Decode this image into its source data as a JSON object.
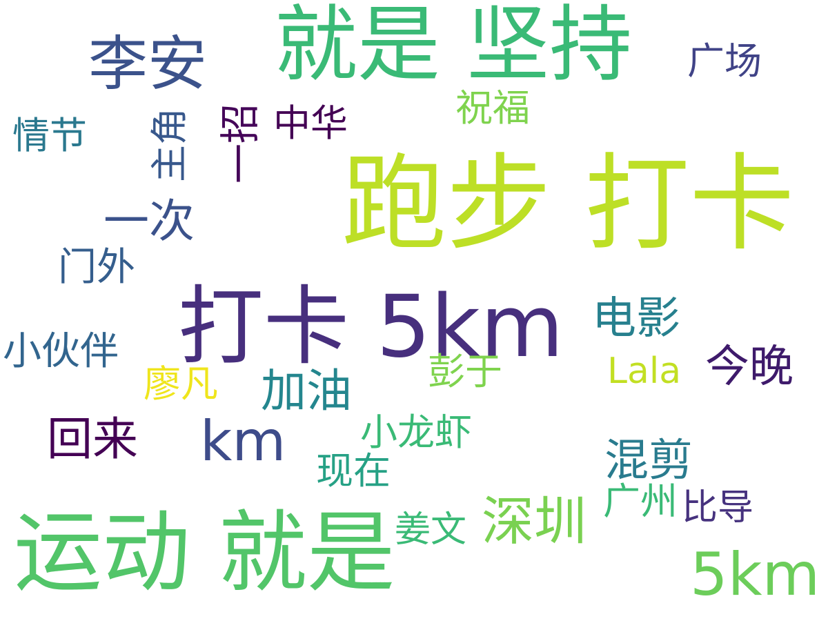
{
  "words": [
    {
      "text": "跑步 打卡",
      "color": "#bddf26"
    },
    {
      "text": "打卡 5km",
      "color": "#472f7d"
    },
    {
      "text": "就是 坚持",
      "color": "#3aba76"
    },
    {
      "text": "运动 就是",
      "color": "#52c569"
    },
    {
      "text": "李安",
      "color": "#3b528b"
    },
    {
      "text": "5km",
      "color": "#6ccd5a"
    },
    {
      "text": "深圳",
      "color": "#7ad151"
    },
    {
      "text": "km",
      "color": "#3e4c8a"
    },
    {
      "text": "加油",
      "color": "#24868e"
    },
    {
      "text": "回来",
      "color": "#440154"
    },
    {
      "text": "混剪",
      "color": "#297b8e"
    },
    {
      "text": "电影",
      "color": "#27808e"
    },
    {
      "text": "今晚",
      "color": "#3e1a6b"
    },
    {
      "text": "一次",
      "color": "#3b528b"
    },
    {
      "text": "小伙伴",
      "color": "#32658e"
    },
    {
      "text": "门外",
      "color": "#355e8d"
    },
    {
      "text": "情节",
      "color": "#2a788e"
    },
    {
      "text": "主角",
      "color": "#38588c"
    },
    {
      "text": "一招",
      "color": "#450559"
    },
    {
      "text": "中华",
      "color": "#440154"
    },
    {
      "text": "祝福",
      "color": "#7fd34e"
    },
    {
      "text": "广场",
      "color": "#404387"
    },
    {
      "text": "小龙虾",
      "color": "#3aba76"
    },
    {
      "text": "现在",
      "color": "#26a185"
    },
    {
      "text": "彭于",
      "color": "#7fd34e"
    },
    {
      "text": "Lala",
      "color": "#c2df23"
    },
    {
      "text": "廖凡",
      "color": "#efe51c"
    },
    {
      "text": "姜文",
      "color": "#3aba76"
    },
    {
      "text": "广州",
      "color": "#3aba76"
    },
    {
      "text": "比导",
      "color": "#46327e"
    }
  ]
}
